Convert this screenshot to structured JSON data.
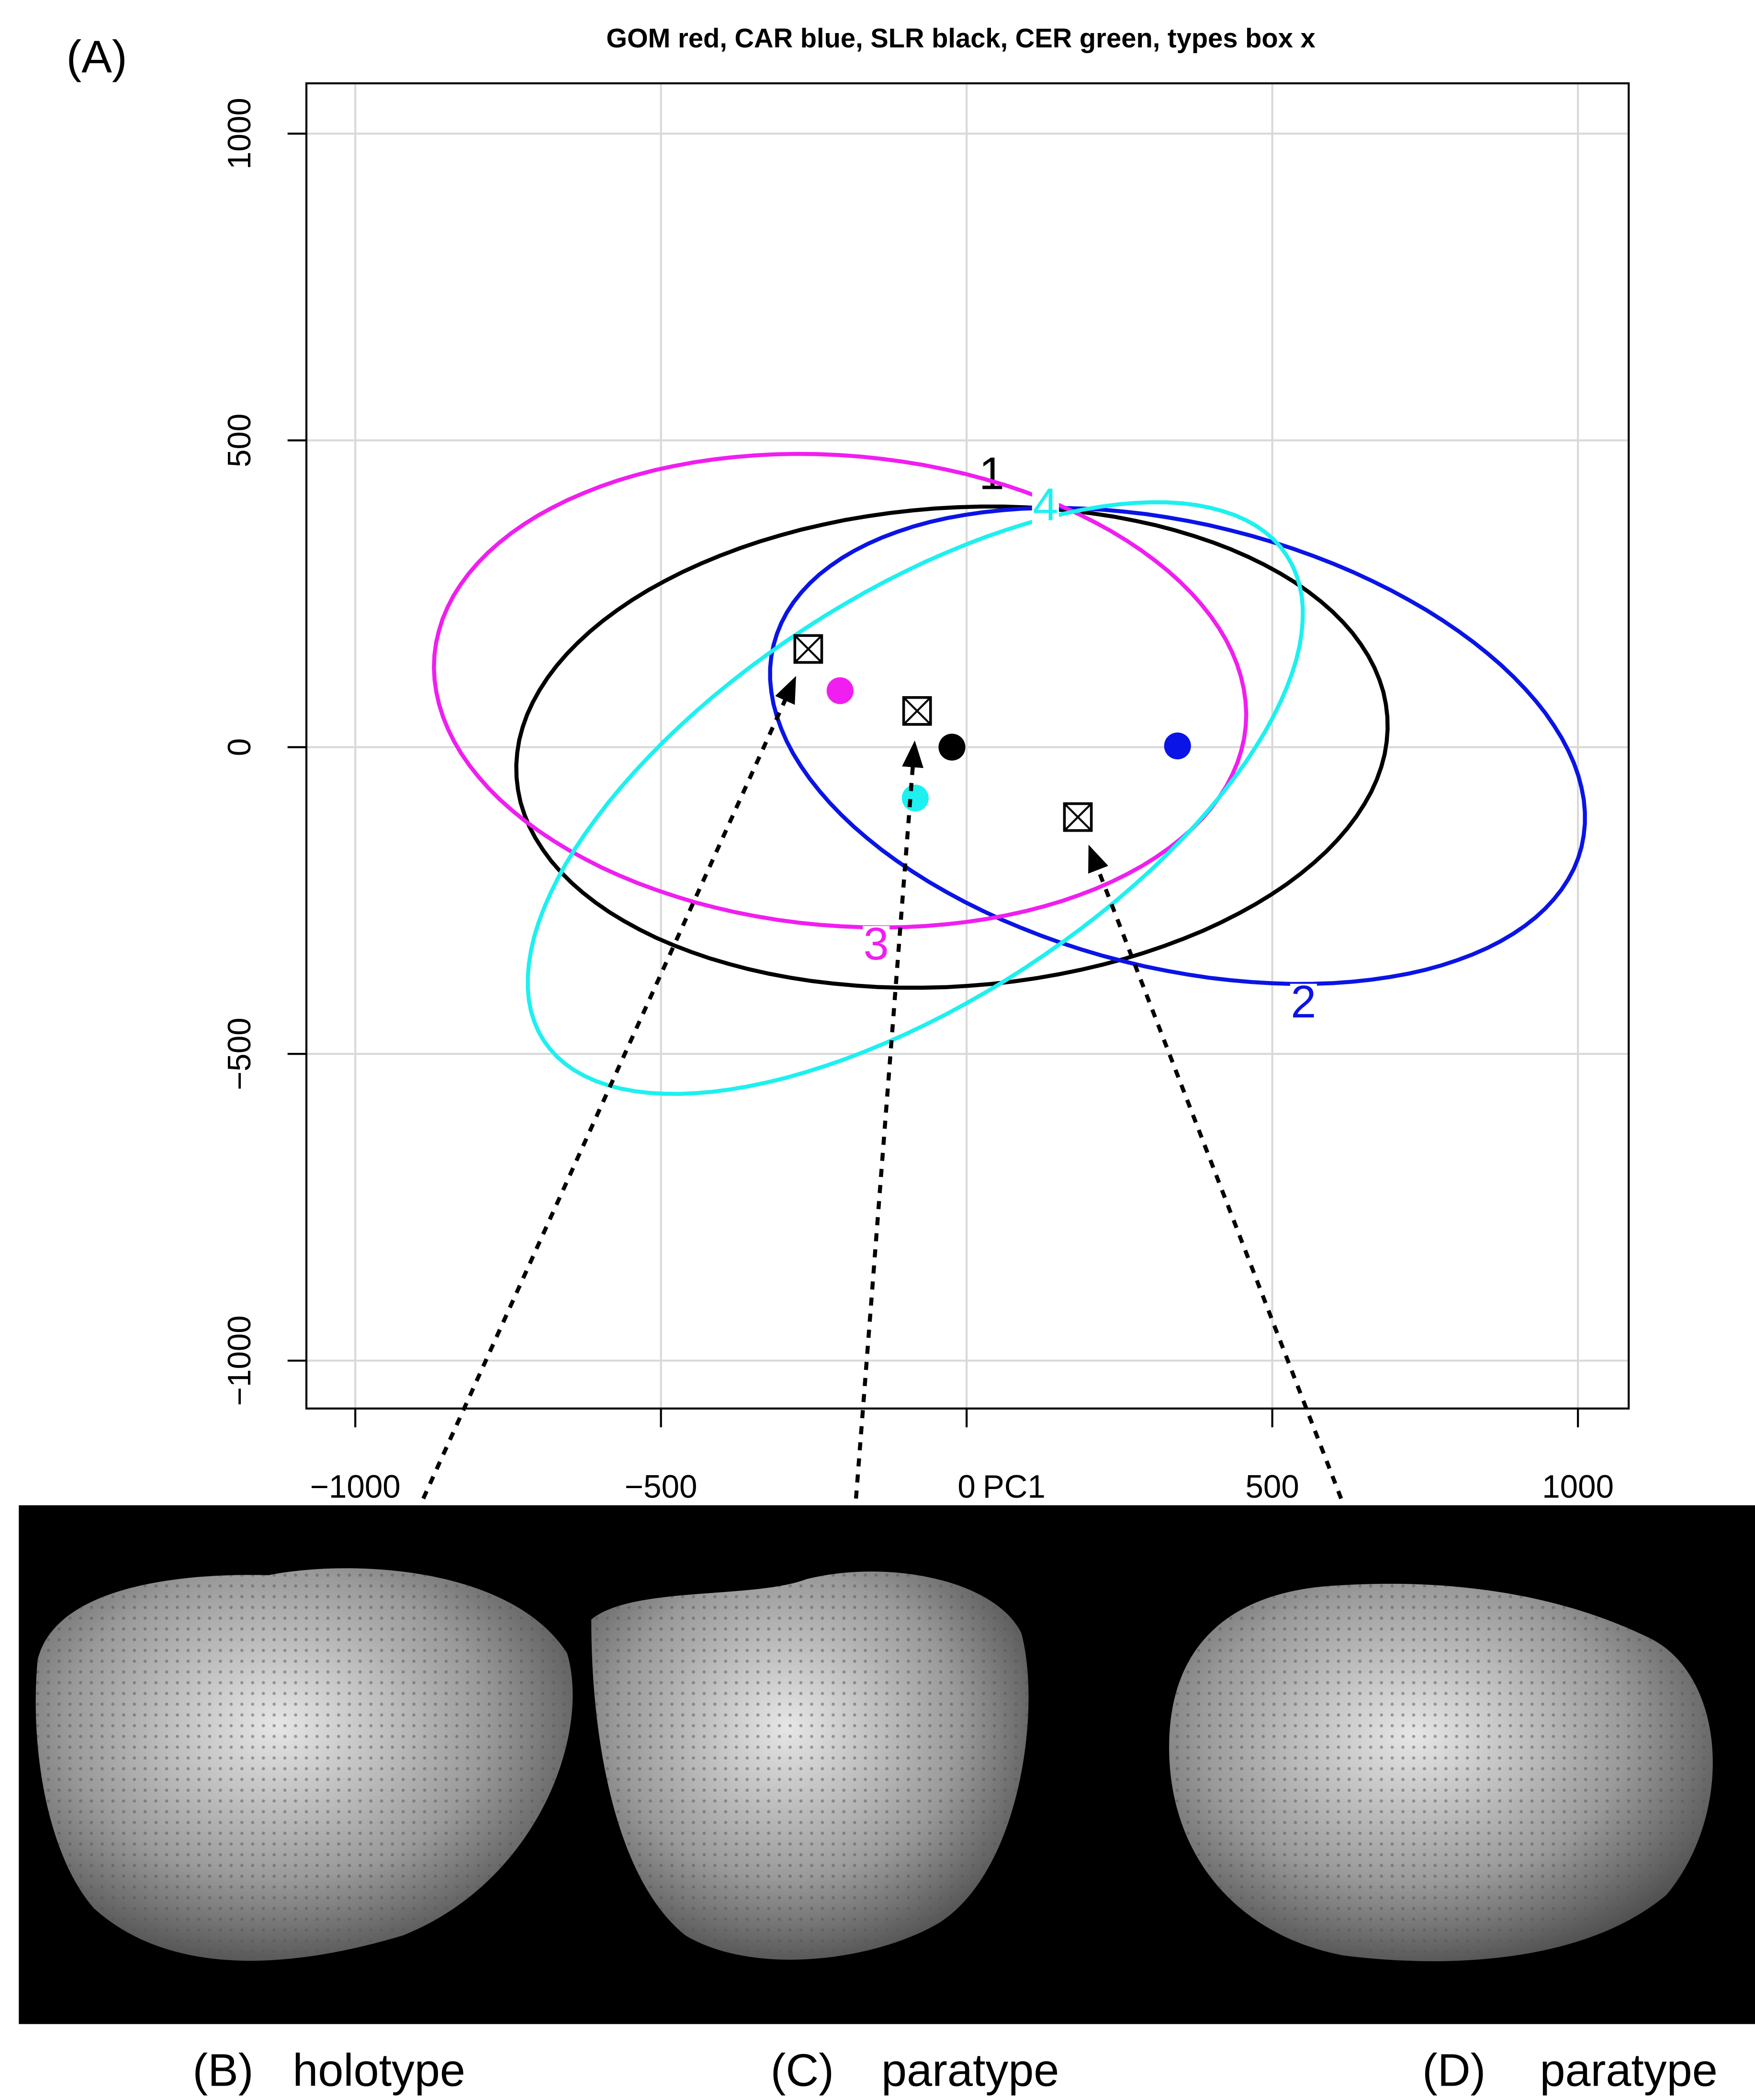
{
  "panel_label": "(A)",
  "chart_data": {
    "type": "scatter",
    "title": "GOM red, CAR blue, SLR black, CER green, types box x",
    "xlabel": "PC1",
    "xlim": [
      -1080,
      1083
    ],
    "ylim": [
      -1078,
      1082
    ],
    "xticks": [
      {
        "value": -1000,
        "label": "−1000"
      },
      {
        "value": -500,
        "label": "−500"
      },
      0,
      500,
      1000
    ],
    "yticks": [
      {
        "value": -1000,
        "label": "−1000"
      },
      {
        "value": -500,
        "label": "−500"
      },
      0,
      500,
      1000
    ],
    "grid": true,
    "series": [
      {
        "name": "1",
        "color": "#000000",
        "x": [
          -24
        ],
        "y": [
          0
        ],
        "ellipse": {
          "rx": 714,
          "ry": 390,
          "angle": 4
        }
      },
      {
        "name": "2",
        "color": "#0a14e6",
        "x": [
          345
        ],
        "y": [
          2
        ],
        "ellipse": {
          "rx": 681,
          "ry": 362,
          "angle": -14
        }
      },
      {
        "name": "3",
        "color": "#f01ef0",
        "x": [
          -207
        ],
        "y": [
          92
        ],
        "ellipse": {
          "rx": 666,
          "ry": 383,
          "angle": -5
        }
      },
      {
        "name": "4",
        "color": "#1ef0f0",
        "x": [
          -84
        ],
        "y": [
          -83
        ],
        "ellipse": {
          "rx": 725,
          "ry": 330,
          "angle": 33
        }
      }
    ],
    "types": {
      "x": [
        -259,
        -81,
        182
      ],
      "y": [
        160,
        59,
        -114
      ]
    }
  },
  "panels": [
    {
      "label": "(B)",
      "caption": "holotype"
    },
    {
      "label": "(C)",
      "caption": "paratype"
    },
    {
      "label": "(D)",
      "caption": "paratype"
    }
  ]
}
